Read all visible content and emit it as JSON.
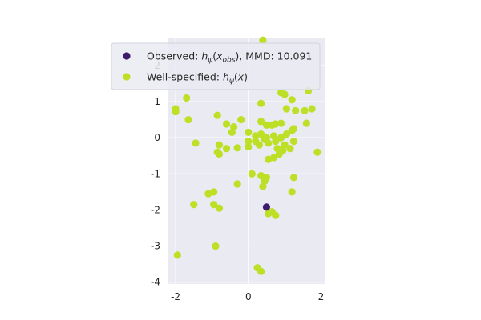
{
  "chart_data": {
    "type": "scatter",
    "xlim": [
      -2.2,
      2.1
    ],
    "ylim": [
      -4.05,
      2.75
    ],
    "xticks": [
      "-2",
      "0",
      "2"
    ],
    "yticks": [
      "-4",
      "-3",
      "-2",
      "-1",
      "0",
      "1",
      "2"
    ],
    "grid": true,
    "legend_placement": "top-left",
    "legend": [
      {
        "name": "Observed: hψ(x_obs), MMD: 10.091",
        "color": "#3d1d6b",
        "prefix": "Observed: ",
        "h": "h",
        "sub1": "ψ",
        "open": "(x",
        "sub2": "obs",
        "suffix": "), MMD: 10.091"
      },
      {
        "name": "Well-specified: hψ(x)",
        "color": "#bddf26",
        "prefix": "Well-specified: ",
        "h": "h",
        "sub1": "ψ",
        "open": "(x",
        "sub2": "",
        "suffix": ")"
      }
    ],
    "series": [
      {
        "name": "Well-specified: hψ(x)",
        "color": "#bddf26",
        "points": [
          [
            0.4,
            2.7
          ],
          [
            1.65,
            1.3
          ],
          [
            -1.7,
            1.1
          ],
          [
            -2.0,
            0.8
          ],
          [
            -2.0,
            0.72
          ],
          [
            0.35,
            0.95
          ],
          [
            1.2,
            1.05
          ],
          [
            -1.65,
            0.5
          ],
          [
            -0.85,
            0.62
          ],
          [
            -0.2,
            0.5
          ],
          [
            -0.6,
            0.38
          ],
          [
            -0.4,
            0.3
          ],
          [
            -0.45,
            0.15
          ],
          [
            0.35,
            0.45
          ],
          [
            0.5,
            0.35
          ],
          [
            0.65,
            0.35
          ],
          [
            0.75,
            0.38
          ],
          [
            0.9,
            0.4
          ],
          [
            1.2,
            0.2
          ],
          [
            1.25,
            0.25
          ],
          [
            1.6,
            0.4
          ],
          [
            1.05,
            0.8
          ],
          [
            1.3,
            0.75
          ],
          [
            1.55,
            0.75
          ],
          [
            1.75,
            0.8
          ],
          [
            0.9,
            1.25
          ],
          [
            1.0,
            1.2
          ],
          [
            0.0,
            0.15
          ],
          [
            0.2,
            0.05
          ],
          [
            0.35,
            0.1
          ],
          [
            0.5,
            0.0
          ],
          [
            0.7,
            0.05
          ],
          [
            0.9,
            0.0
          ],
          [
            1.05,
            0.1
          ],
          [
            0.2,
            -0.1
          ],
          [
            0.3,
            -0.2
          ],
          [
            0.45,
            -0.05
          ],
          [
            0.55,
            -0.15
          ],
          [
            0.75,
            -0.1
          ],
          [
            1.0,
            -0.2
          ],
          [
            1.15,
            -0.3
          ],
          [
            -0.6,
            -0.3
          ],
          [
            -0.3,
            -0.28
          ],
          [
            0.0,
            -0.25
          ],
          [
            0.8,
            -0.3
          ],
          [
            0.95,
            -0.35
          ],
          [
            0.85,
            -0.45
          ],
          [
            0.7,
            -0.55
          ],
          [
            0.55,
            -0.6
          ],
          [
            1.25,
            -0.1
          ],
          [
            -0.8,
            -0.2
          ],
          [
            -0.85,
            -0.4
          ],
          [
            -0.8,
            -0.45
          ],
          [
            0.0,
            -0.1
          ],
          [
            -1.45,
            -0.15
          ],
          [
            1.9,
            -0.4
          ],
          [
            0.1,
            -1.0
          ],
          [
            0.35,
            -1.05
          ],
          [
            0.45,
            -1.2
          ],
          [
            0.5,
            -1.1
          ],
          [
            1.25,
            -1.1
          ],
          [
            1.2,
            -1.5
          ],
          [
            0.4,
            -1.35
          ],
          [
            -0.3,
            -1.28
          ],
          [
            -0.95,
            -1.5
          ],
          [
            -1.1,
            -1.55
          ],
          [
            -1.5,
            -1.85
          ],
          [
            -0.95,
            -1.85
          ],
          [
            -0.8,
            -1.95
          ],
          [
            0.55,
            -2.1
          ],
          [
            0.65,
            -2.05
          ],
          [
            0.75,
            -2.15
          ],
          [
            -0.9,
            -3.0
          ],
          [
            -1.95,
            -3.25
          ],
          [
            0.25,
            -3.6
          ],
          [
            0.35,
            -3.7
          ]
        ]
      },
      {
        "name": "Observed: hψ(x_obs), MMD: 10.091",
        "color": "#3d1d6b",
        "points": [
          [
            0.5,
            -1.92
          ]
        ]
      }
    ]
  }
}
